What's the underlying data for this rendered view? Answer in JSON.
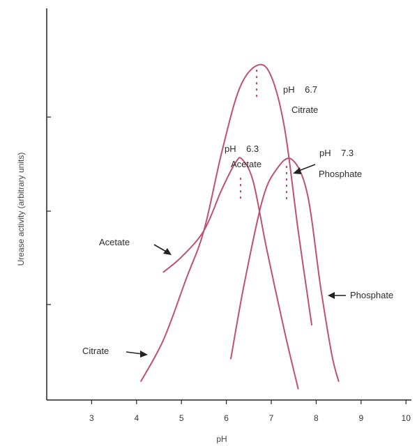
{
  "chart_data": {
    "type": "line",
    "title": "",
    "xlabel": "pH",
    "ylabel": "Urease activity (arbitrary units)",
    "xlim": [
      2,
      10
    ],
    "x_ticks": [
      "3",
      "4",
      "5",
      "6",
      "7",
      "8",
      "9",
      "10"
    ],
    "ylim": [
      0,
      1
    ],
    "y_ticks_labeled": false,
    "grid": false,
    "curve_color": "#c0506e",
    "series": [
      {
        "name": "Acetate",
        "x": [
          4.6,
          5.0,
          5.5,
          5.9,
          6.2,
          6.35,
          6.6,
          6.9,
          7.3,
          7.6
        ],
        "y": [
          0.34,
          0.38,
          0.45,
          0.56,
          0.63,
          0.64,
          0.58,
          0.4,
          0.18,
          0.03
        ]
      },
      {
        "name": "Citrate",
        "x": [
          4.1,
          4.6,
          5.1,
          5.5,
          5.9,
          6.3,
          6.7,
          7.0,
          7.3,
          7.6,
          7.9
        ],
        "y": [
          0.05,
          0.16,
          0.32,
          0.45,
          0.66,
          0.83,
          0.89,
          0.86,
          0.72,
          0.45,
          0.2
        ]
      },
      {
        "name": "Phosphate",
        "x": [
          6.1,
          6.4,
          6.8,
          7.1,
          7.45,
          7.8,
          8.1,
          8.35,
          8.5
        ],
        "y": [
          0.11,
          0.31,
          0.53,
          0.61,
          0.64,
          0.55,
          0.3,
          0.12,
          0.05
        ]
      }
    ],
    "annotations": [
      {
        "id": "citrate_peak",
        "lines": [
          "pH    6.7",
          "Citrate"
        ]
      },
      {
        "id": "acetate_peak",
        "lines": [
          "pH    6.3",
          "Acetate"
        ]
      },
      {
        "id": "phosphate_peak",
        "lines": [
          "pH    7.3",
          "Phosphate"
        ]
      }
    ],
    "callouts": [
      "Acetate",
      "Citrate",
      "Phosphate"
    ]
  }
}
